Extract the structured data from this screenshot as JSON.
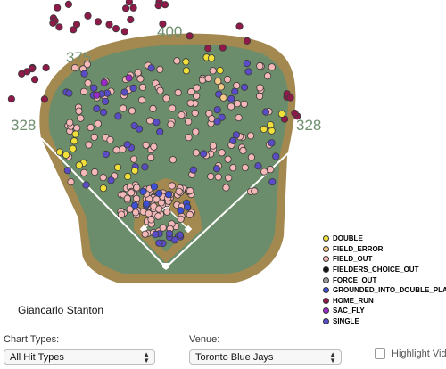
{
  "chart_data": {
    "type": "scatter",
    "title": "",
    "distance_labels": [
      "328",
      "375",
      "400",
      "375",
      "328"
    ],
    "legend": [
      {
        "key": "DOUBLE",
        "label": "DOUBLE",
        "color": "#f2e03a"
      },
      {
        "key": "FIELD_ERROR",
        "label": "FIELD_ERROR",
        "color": "#f5c98a"
      },
      {
        "key": "FIELD_OUT",
        "label": "FIELD_OUT",
        "color": "#f4b8b8"
      },
      {
        "key": "FIELDERS_CHOICE_OUT",
        "label": "FIELDERS_CHOICE_OUT",
        "color": "#111111"
      },
      {
        "key": "FORCE_OUT",
        "label": "FORCE_OUT",
        "color": "#999999"
      },
      {
        "key": "GROUNDED_INTO_DOUBLE_PLAY",
        "label": "GROUNDED_INTO_DOUBLE_PLAY",
        "color": "#3d4fd6"
      },
      {
        "key": "HOME_RUN",
        "label": "HOME_RUN",
        "color": "#8e1a49"
      },
      {
        "key": "SAC_FLY",
        "label": "SAC_FLY",
        "color": "#9b2ac9"
      },
      {
        "key": "SINGLE",
        "label": "SINGLE",
        "color": "#5a4cc7"
      }
    ]
  },
  "player_name": "Giancarlo Stanton",
  "controls": {
    "chart_types_label": "Chart Types:",
    "chart_types_value": "All Hit Types",
    "venue_label": "Venue:",
    "venue_value": "Toronto Blue Jays",
    "highlight_label": "Highlight Video"
  }
}
